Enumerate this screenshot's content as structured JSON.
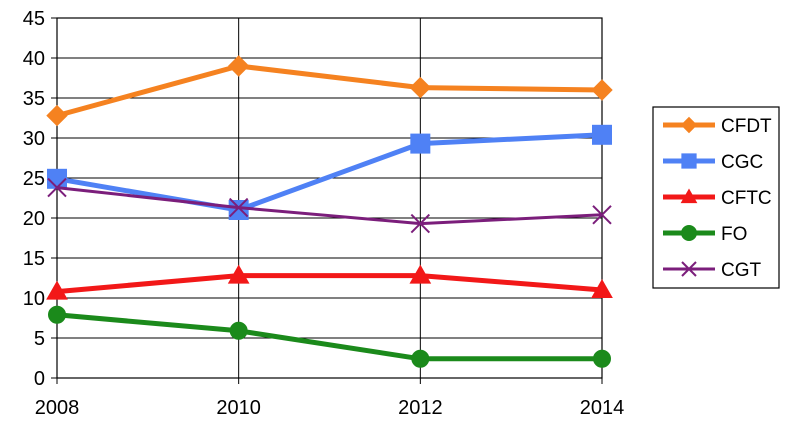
{
  "chart_data": {
    "type": "line",
    "title": "",
    "xlabel": "",
    "ylabel": "",
    "x": [
      2008,
      2010,
      2012,
      2014
    ],
    "x_tick_labels": [
      "2008",
      "2010",
      "2012",
      "2014"
    ],
    "ylim": [
      0,
      45
    ],
    "y_ticks": [
      0,
      5,
      10,
      15,
      20,
      25,
      30,
      35,
      40,
      45
    ],
    "y_tick_labels": [
      "0",
      "5",
      "10",
      "15",
      "20",
      "25",
      "30",
      "35",
      "40",
      "45"
    ],
    "grid": true,
    "legend_position": "right",
    "series": [
      {
        "name": "CFDT",
        "color": "#F58220",
        "marker": "diamond",
        "values": [
          32.8,
          39.0,
          36.3,
          36.0
        ]
      },
      {
        "name": "CGC",
        "color": "#4F81F5",
        "marker": "square",
        "values": [
          24.9,
          21.0,
          29.3,
          30.4
        ]
      },
      {
        "name": "CFTC",
        "color": "#F21818",
        "marker": "triangle",
        "values": [
          10.8,
          12.8,
          12.8,
          11.0
        ]
      },
      {
        "name": "FO",
        "color": "#1B8A1B",
        "marker": "circle",
        "values": [
          7.9,
          5.9,
          2.4,
          2.4
        ]
      },
      {
        "name": "CGT",
        "color": "#7B1E7B",
        "marker": "x",
        "values": [
          23.8,
          21.3,
          19.3,
          20.4
        ]
      }
    ]
  }
}
